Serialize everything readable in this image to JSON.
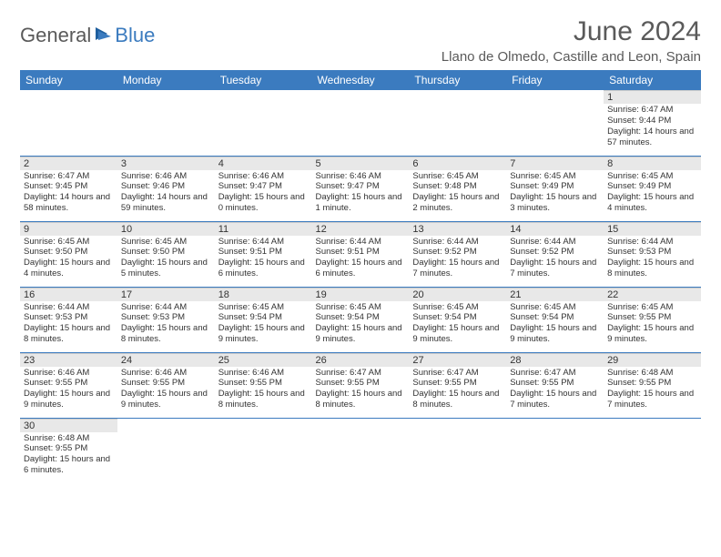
{
  "logo": {
    "text1": "General",
    "text2": "Blue"
  },
  "title": "June 2024",
  "location": "Llano de Olmedo, Castille and Leon, Spain",
  "colors": {
    "header_bg": "#3b7bbf",
    "header_text": "#ffffff",
    "day_num_bg": "#e8e8e8",
    "row_border": "#3b7bbf",
    "text": "#333333",
    "title_text": "#5a5a5a"
  },
  "weekdays": [
    "Sunday",
    "Monday",
    "Tuesday",
    "Wednesday",
    "Thursday",
    "Friday",
    "Saturday"
  ],
  "weeks": [
    [
      null,
      null,
      null,
      null,
      null,
      null,
      {
        "n": "1",
        "sunrise": "Sunrise: 6:47 AM",
        "sunset": "Sunset: 9:44 PM",
        "daylight": "Daylight: 14 hours and 57 minutes."
      }
    ],
    [
      {
        "n": "2",
        "sunrise": "Sunrise: 6:47 AM",
        "sunset": "Sunset: 9:45 PM",
        "daylight": "Daylight: 14 hours and 58 minutes."
      },
      {
        "n": "3",
        "sunrise": "Sunrise: 6:46 AM",
        "sunset": "Sunset: 9:46 PM",
        "daylight": "Daylight: 14 hours and 59 minutes."
      },
      {
        "n": "4",
        "sunrise": "Sunrise: 6:46 AM",
        "sunset": "Sunset: 9:47 PM",
        "daylight": "Daylight: 15 hours and 0 minutes."
      },
      {
        "n": "5",
        "sunrise": "Sunrise: 6:46 AM",
        "sunset": "Sunset: 9:47 PM",
        "daylight": "Daylight: 15 hours and 1 minute."
      },
      {
        "n": "6",
        "sunrise": "Sunrise: 6:45 AM",
        "sunset": "Sunset: 9:48 PM",
        "daylight": "Daylight: 15 hours and 2 minutes."
      },
      {
        "n": "7",
        "sunrise": "Sunrise: 6:45 AM",
        "sunset": "Sunset: 9:49 PM",
        "daylight": "Daylight: 15 hours and 3 minutes."
      },
      {
        "n": "8",
        "sunrise": "Sunrise: 6:45 AM",
        "sunset": "Sunset: 9:49 PM",
        "daylight": "Daylight: 15 hours and 4 minutes."
      }
    ],
    [
      {
        "n": "9",
        "sunrise": "Sunrise: 6:45 AM",
        "sunset": "Sunset: 9:50 PM",
        "daylight": "Daylight: 15 hours and 4 minutes."
      },
      {
        "n": "10",
        "sunrise": "Sunrise: 6:45 AM",
        "sunset": "Sunset: 9:50 PM",
        "daylight": "Daylight: 15 hours and 5 minutes."
      },
      {
        "n": "11",
        "sunrise": "Sunrise: 6:44 AM",
        "sunset": "Sunset: 9:51 PM",
        "daylight": "Daylight: 15 hours and 6 minutes."
      },
      {
        "n": "12",
        "sunrise": "Sunrise: 6:44 AM",
        "sunset": "Sunset: 9:51 PM",
        "daylight": "Daylight: 15 hours and 6 minutes."
      },
      {
        "n": "13",
        "sunrise": "Sunrise: 6:44 AM",
        "sunset": "Sunset: 9:52 PM",
        "daylight": "Daylight: 15 hours and 7 minutes."
      },
      {
        "n": "14",
        "sunrise": "Sunrise: 6:44 AM",
        "sunset": "Sunset: 9:52 PM",
        "daylight": "Daylight: 15 hours and 7 minutes."
      },
      {
        "n": "15",
        "sunrise": "Sunrise: 6:44 AM",
        "sunset": "Sunset: 9:53 PM",
        "daylight": "Daylight: 15 hours and 8 minutes."
      }
    ],
    [
      {
        "n": "16",
        "sunrise": "Sunrise: 6:44 AM",
        "sunset": "Sunset: 9:53 PM",
        "daylight": "Daylight: 15 hours and 8 minutes."
      },
      {
        "n": "17",
        "sunrise": "Sunrise: 6:44 AM",
        "sunset": "Sunset: 9:53 PM",
        "daylight": "Daylight: 15 hours and 8 minutes."
      },
      {
        "n": "18",
        "sunrise": "Sunrise: 6:45 AM",
        "sunset": "Sunset: 9:54 PM",
        "daylight": "Daylight: 15 hours and 9 minutes."
      },
      {
        "n": "19",
        "sunrise": "Sunrise: 6:45 AM",
        "sunset": "Sunset: 9:54 PM",
        "daylight": "Daylight: 15 hours and 9 minutes."
      },
      {
        "n": "20",
        "sunrise": "Sunrise: 6:45 AM",
        "sunset": "Sunset: 9:54 PM",
        "daylight": "Daylight: 15 hours and 9 minutes."
      },
      {
        "n": "21",
        "sunrise": "Sunrise: 6:45 AM",
        "sunset": "Sunset: 9:54 PM",
        "daylight": "Daylight: 15 hours and 9 minutes."
      },
      {
        "n": "22",
        "sunrise": "Sunrise: 6:45 AM",
        "sunset": "Sunset: 9:55 PM",
        "daylight": "Daylight: 15 hours and 9 minutes."
      }
    ],
    [
      {
        "n": "23",
        "sunrise": "Sunrise: 6:46 AM",
        "sunset": "Sunset: 9:55 PM",
        "daylight": "Daylight: 15 hours and 9 minutes."
      },
      {
        "n": "24",
        "sunrise": "Sunrise: 6:46 AM",
        "sunset": "Sunset: 9:55 PM",
        "daylight": "Daylight: 15 hours and 9 minutes."
      },
      {
        "n": "25",
        "sunrise": "Sunrise: 6:46 AM",
        "sunset": "Sunset: 9:55 PM",
        "daylight": "Daylight: 15 hours and 8 minutes."
      },
      {
        "n": "26",
        "sunrise": "Sunrise: 6:47 AM",
        "sunset": "Sunset: 9:55 PM",
        "daylight": "Daylight: 15 hours and 8 minutes."
      },
      {
        "n": "27",
        "sunrise": "Sunrise: 6:47 AM",
        "sunset": "Sunset: 9:55 PM",
        "daylight": "Daylight: 15 hours and 8 minutes."
      },
      {
        "n": "28",
        "sunrise": "Sunrise: 6:47 AM",
        "sunset": "Sunset: 9:55 PM",
        "daylight": "Daylight: 15 hours and 7 minutes."
      },
      {
        "n": "29",
        "sunrise": "Sunrise: 6:48 AM",
        "sunset": "Sunset: 9:55 PM",
        "daylight": "Daylight: 15 hours and 7 minutes."
      }
    ],
    [
      {
        "n": "30",
        "sunrise": "Sunrise: 6:48 AM",
        "sunset": "Sunset: 9:55 PM",
        "daylight": "Daylight: 15 hours and 6 minutes."
      },
      null,
      null,
      null,
      null,
      null,
      null
    ]
  ]
}
